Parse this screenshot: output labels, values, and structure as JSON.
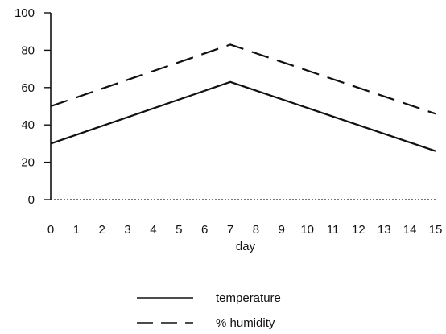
{
  "chart_data": {
    "type": "line",
    "xlabel": "day",
    "ylabel": "",
    "x": [
      0,
      7,
      15
    ],
    "xticks": [
      "0",
      "1",
      "2",
      "3",
      "4",
      "5",
      "6",
      "7",
      "8",
      "9",
      "10",
      "11",
      "12",
      "13",
      "14",
      "15"
    ],
    "yticks": [
      "0",
      "20",
      "40",
      "60",
      "80",
      "100"
    ],
    "xlim": [
      0,
      15
    ],
    "ylim": [
      0,
      100
    ],
    "grid": false,
    "legend_position": "bottom-center",
    "series": [
      {
        "name": "temperature",
        "style": "solid",
        "color": "#111111",
        "values": [
          30,
          63,
          26
        ]
      },
      {
        "name": "% humidity",
        "style": "dashed",
        "color": "#111111",
        "values": [
          50,
          83,
          46
        ]
      }
    ]
  }
}
